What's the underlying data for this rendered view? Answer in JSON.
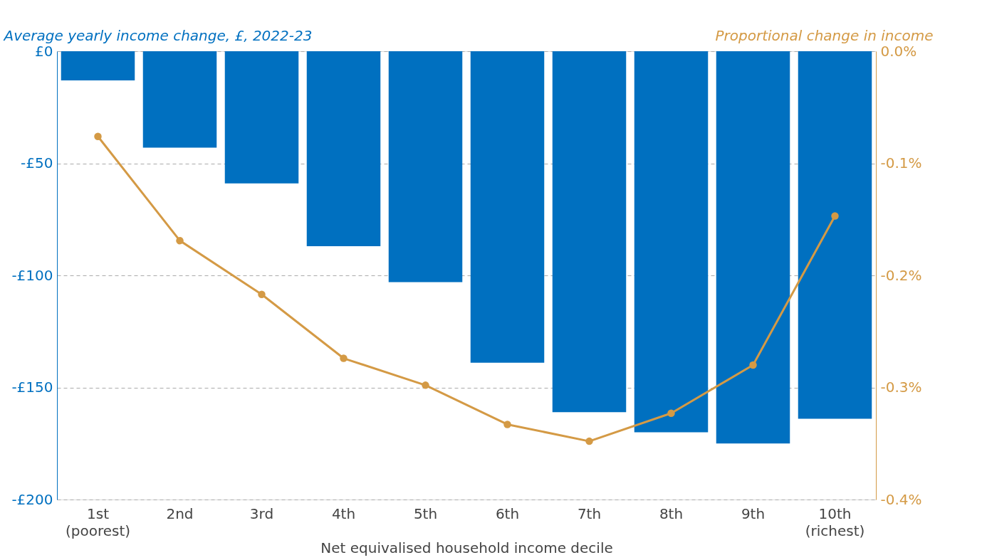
{
  "chart_data": {
    "type": "bar",
    "ylabel": "Average yearly income change, £, 2022-23",
    "y2label": "Proportional change in income",
    "xlabel": "Net equivalised household income decile",
    "categories": [
      "1st (poorest)",
      "2nd",
      "3rd",
      "4th",
      "5th",
      "6th",
      "7th",
      "8th",
      "9th",
      "10th (richest)"
    ],
    "series": [
      {
        "color": "#0070c0",
        "values": [
          -13,
          -43,
          -59,
          -87,
          -103,
          -139,
          -161,
          -170,
          -175,
          -164
        ]
      },
      {
        "type": "line",
        "axis": "y2",
        "color": "#d49a45",
        "marker": "circle",
        "values": [
          -0.076,
          -0.169,
          -0.217,
          -0.274,
          -0.298,
          -0.333,
          -0.348,
          -0.323,
          -0.28,
          -0.147
        ]
      }
    ],
    "ylim": [
      -200,
      0
    ],
    "yticks": [
      {
        "value": -200,
        "label": "-£200"
      },
      {
        "value": -150,
        "label": "-£150"
      },
      {
        "value": -100,
        "label": "-£100"
      },
      {
        "value": -50,
        "label": "-£50"
      },
      {
        "value": 0,
        "label": "£0"
      }
    ],
    "y2lim": [
      -0.4,
      0
    ],
    "y2ticks": [
      {
        "value": -0.4,
        "label": "-0.4%"
      },
      {
        "value": -0.3,
        "label": "-0.3%"
      },
      {
        "value": -0.2,
        "label": "-0.2%"
      },
      {
        "value": -0.1,
        "label": "-0.1%"
      },
      {
        "value": 0,
        "label": "0.0%"
      }
    ],
    "grid": "y"
  }
}
